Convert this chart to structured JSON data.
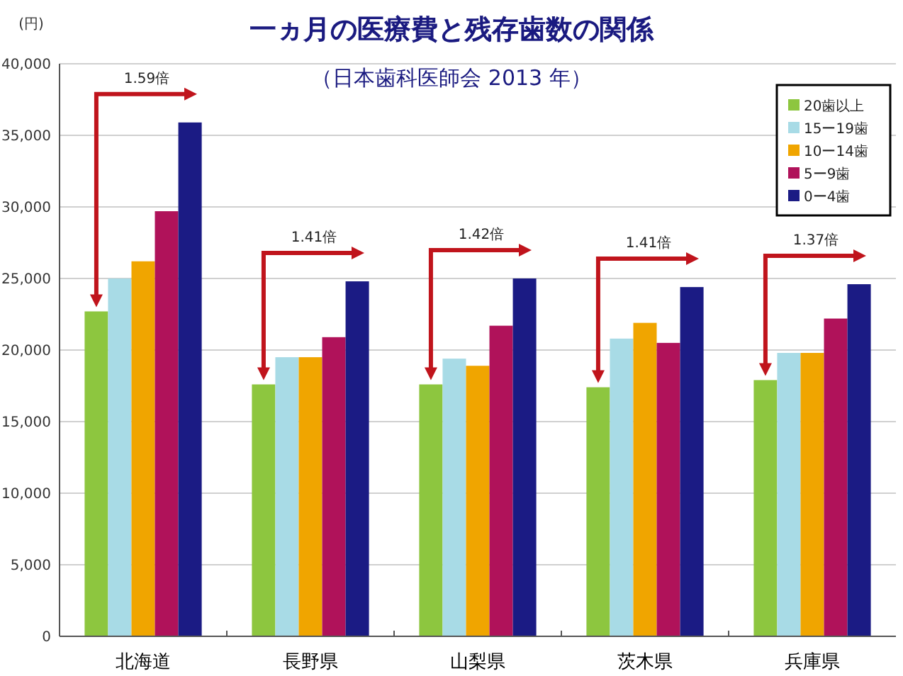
{
  "chart_data": {
    "type": "bar",
    "title": "一ヵ月の医療費と残存歯数の関係",
    "subtitle": "（日本歯科医師会 2013 年）",
    "ylabel": "(円)",
    "categories": [
      "北海道",
      "長野県",
      "山梨県",
      "茨木県",
      "兵庫県"
    ],
    "series": [
      {
        "name": "20歯以上",
        "color": "#8dc63f",
        "values": [
          22700,
          17600,
          17600,
          17400,
          17900
        ]
      },
      {
        "name": "15ー19歯",
        "color": "#a8dbe6",
        "values": [
          25000,
          19500,
          19400,
          20800,
          19800
        ]
      },
      {
        "name": "10ー14歯",
        "color": "#f0a500",
        "values": [
          26200,
          19500,
          18900,
          21900,
          19800
        ]
      },
      {
        "name": "5ー9歯",
        "color": "#b0125a",
        "values": [
          29700,
          20900,
          21700,
          20500,
          22200
        ]
      },
      {
        "name": "0ー4歯",
        "color": "#1b1b84",
        "values": [
          35900,
          24800,
          25000,
          24400,
          24600
        ]
      }
    ],
    "ylim": [
      0,
      40000
    ],
    "yticks": [
      {
        "value": 0,
        "label": "0"
      },
      {
        "value": 5000,
        "label": "5,000"
      },
      {
        "value": 10000,
        "label": "10,000"
      },
      {
        "value": 15000,
        "label": "15,000"
      },
      {
        "value": 20000,
        "label": "20,000"
      },
      {
        "value": 25000,
        "label": "25,000"
      },
      {
        "value": 30000,
        "label": "30,000"
      },
      {
        "value": 35000,
        "label": "35,000"
      },
      {
        "value": 40000,
        "label": "40,000"
      }
    ],
    "grid": "y",
    "legend": "top right",
    "annotations": [
      "1.59倍",
      "1.41倍",
      "1.42倍",
      "1.41倍",
      "1.37倍"
    ]
  }
}
